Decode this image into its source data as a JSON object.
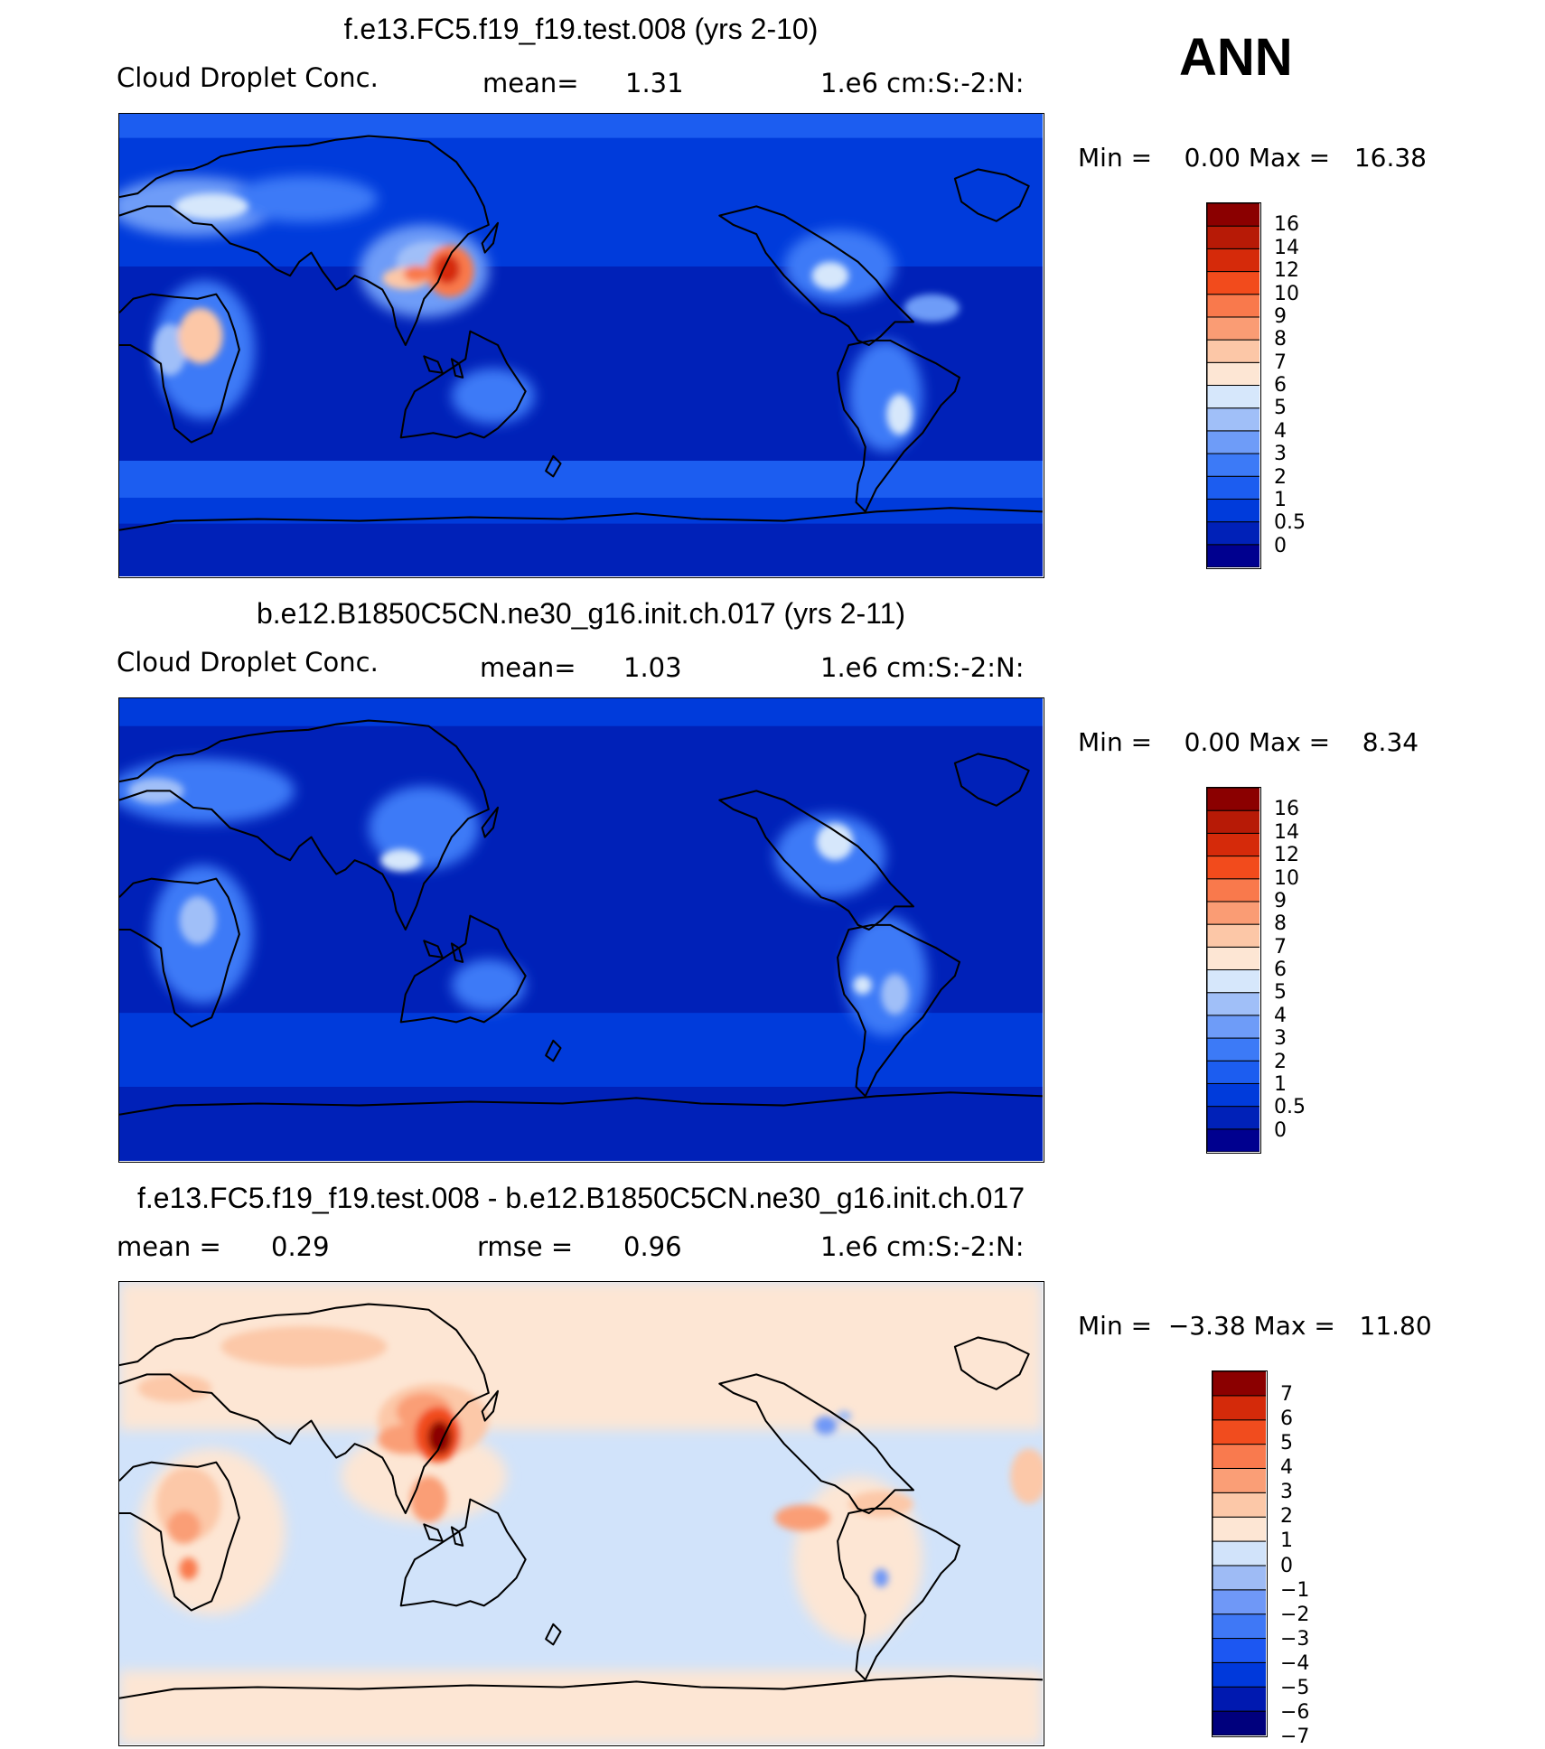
{
  "season": "ANN",
  "colors": {
    "abs": [
      "#00008f",
      "#0021b8",
      "#003bdb",
      "#1c5df0",
      "#3c7af7",
      "#6e9cf8",
      "#a0bff8",
      "#d6e7fb",
      "#fde6d4",
      "#fcc7a7",
      "#fa9c74",
      "#f9794c",
      "#f24b1c",
      "#d52a0a",
      "#b71a06",
      "#8b0000"
    ],
    "diff": [
      "#00007d",
      "#0019b0",
      "#0039db",
      "#1c57f2",
      "#3f78f6",
      "#6f98f7",
      "#9ebbf5",
      "#d1e3fa",
      "#fde6d4",
      "#fcc8a8",
      "#fa9e76",
      "#f97a4e",
      "#f14c1e",
      "#d42a0a",
      "#8b0000"
    ]
  },
  "chart_data": [
    {
      "type": "heatmap",
      "title": "f.e13.FC5.f19_f19.test.008 (yrs 2-10)",
      "variable": "Cloud Droplet Conc.",
      "mean_label": "mean=",
      "mean": "1.31",
      "units": "1.e6 cm:S:-2:N:",
      "minmax": "Min =    0.00 Max =   16.38",
      "min": 0.0,
      "max": 16.38,
      "colorbar_ticks": [
        "16",
        "14",
        "12",
        "10",
        "9",
        "8",
        "7",
        "6",
        "5",
        "4",
        "3",
        "2",
        "1",
        "0.5",
        "0"
      ],
      "hotspots": [
        {
          "region": "East China",
          "level": 15
        },
        {
          "region": "Central Africa",
          "level": 9
        },
        {
          "region": "Europe",
          "level": 7
        },
        {
          "region": "Eastern North America",
          "level": 6
        },
        {
          "region": "South America",
          "level": 6
        }
      ]
    },
    {
      "type": "heatmap",
      "title": "b.e12.B1850C5CN.ne30_g16.init.ch.017 (yrs 2-11)",
      "variable": "Cloud Droplet Conc.",
      "mean_label": "mean=",
      "mean": "1.03",
      "units": "1.e6 cm:S:-2:N:",
      "minmax": "Min =    0.00 Max =    8.34",
      "min": 0.0,
      "max": 8.34,
      "colorbar_ticks": [
        "16",
        "14",
        "12",
        "10",
        "9",
        "8",
        "7",
        "6",
        "5",
        "4",
        "3",
        "2",
        "1",
        "0.5",
        "0"
      ],
      "hotspots": [
        {
          "region": "East China",
          "level": 7
        },
        {
          "region": "Eastern North America",
          "level": 6
        },
        {
          "region": "Central Africa",
          "level": 6
        },
        {
          "region": "Europe",
          "level": 6
        },
        {
          "region": "South America",
          "level": 6
        }
      ]
    },
    {
      "type": "heatmap",
      "title": "f.e13.FC5.f19_f19.test.008 - b.e12.B1850C5CN.ne30_g16.init.ch.017",
      "mean_label": "mean =",
      "mean": "0.29",
      "rmse_label": "rmse =",
      "rmse": "0.96",
      "units": "1.e6 cm:S:-2:N:",
      "minmax": "Min =  −3.38 Max =   11.80",
      "min": -3.38,
      "max": 11.8,
      "colorbar_ticks": [
        "7",
        "6",
        "5",
        "4",
        "3",
        "2",
        "1",
        "0",
        "−1",
        "−2",
        "−3",
        "−4",
        "−5",
        "−6",
        "−7"
      ],
      "hotspots": [
        {
          "region": "East China",
          "level": 7
        },
        {
          "region": "Central Africa",
          "level": 3
        },
        {
          "region": "Europe",
          "level": 1
        },
        {
          "region": "Eastern North America",
          "level": -3
        }
      ]
    }
  ]
}
